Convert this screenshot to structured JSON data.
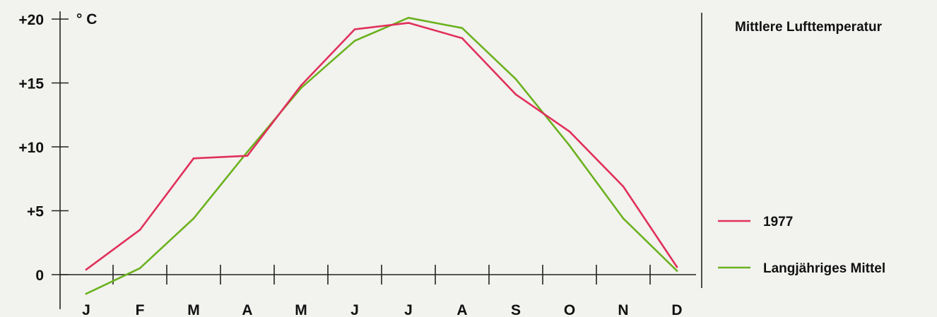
{
  "chart_data": {
    "type": "line",
    "title": "Mittlere Lufttemperatur",
    "unit_label": "° C",
    "categories": [
      "J",
      "F",
      "M",
      "A",
      "M",
      "J",
      "J",
      "A",
      "S",
      "O",
      "N",
      "D"
    ],
    "ylim": [
      -1.6,
      20.6
    ],
    "y_ticks": [
      {
        "value": 20,
        "label": "+20"
      },
      {
        "value": 15,
        "label": "+15"
      },
      {
        "value": 10,
        "label": "+10"
      },
      {
        "value": 5,
        "label": "+5"
      },
      {
        "value": 0,
        "label": "0"
      }
    ],
    "grid": false,
    "legend_position": "right",
    "series": [
      {
        "name": "1977",
        "color": "#e0305a",
        "values": [
          0.4,
          3.5,
          9.1,
          9.3,
          14.8,
          19.2,
          19.7,
          18.5,
          14.1,
          11.2,
          6.9,
          0.6
        ]
      },
      {
        "name": "Langjähriges Mittel",
        "color": "#6bb21e",
        "values": [
          -1.5,
          0.5,
          4.4,
          9.6,
          14.6,
          18.3,
          20.1,
          19.3,
          15.3,
          10.1,
          4.4,
          0.3
        ]
      }
    ]
  }
}
